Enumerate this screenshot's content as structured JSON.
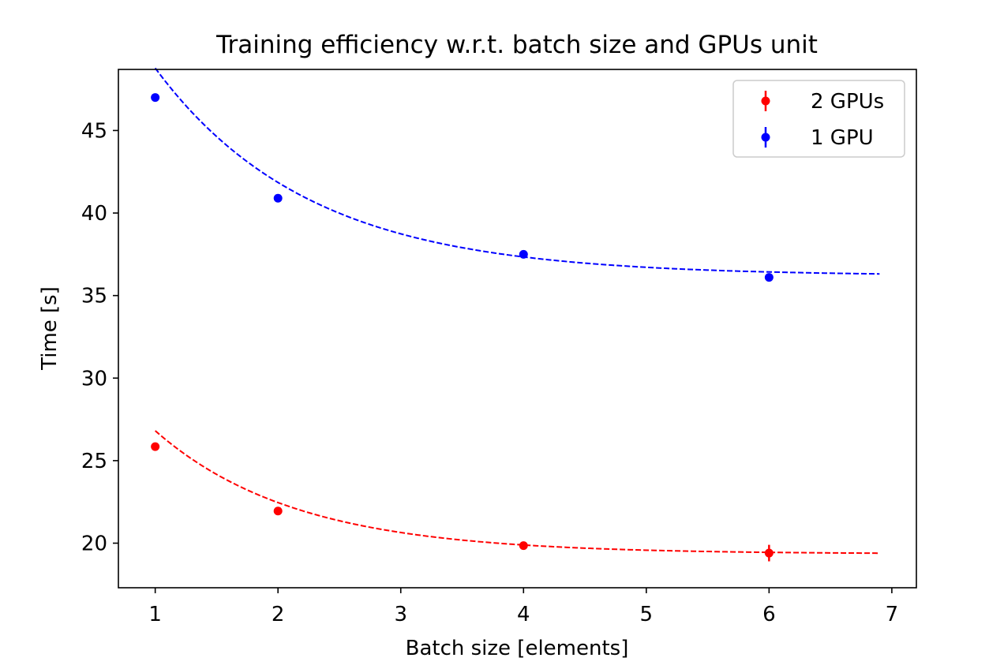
{
  "chart_data": {
    "type": "scatter",
    "title": "Training efficiency w.r.t. batch size and GPUs unit",
    "xlabel": "Batch size [elements]",
    "ylabel": "Time [s]",
    "xlim": [
      0.7,
      7.2
    ],
    "ylim": [
      17.3,
      48.7
    ],
    "xticks": [
      1,
      2,
      3,
      4,
      5,
      6,
      7
    ],
    "yticks": [
      20,
      25,
      30,
      35,
      40,
      45
    ],
    "grid": false,
    "legend_position": "top-right",
    "series": [
      {
        "name": "2 GPUs",
        "color": "#ff0000",
        "x": [
          1,
          2,
          4,
          6
        ],
        "y": [
          25.85,
          21.95,
          19.85,
          19.4
        ],
        "yerr": [
          0.15,
          0.15,
          0.15,
          0.5
        ],
        "fit": {
          "a": 17.9,
          "b": 0.875,
          "c": 19.35,
          "x_range": [
            1,
            6.9
          ]
        }
      },
      {
        "name": "1 GPU",
        "color": "#0000ff",
        "x": [
          1,
          2,
          4,
          6
        ],
        "y": [
          47.0,
          40.9,
          37.5,
          36.1
        ],
        "yerr": [
          0.1,
          0.1,
          0.1,
          0.1
        ],
        "fit": {
          "a": 28.0,
          "b": 0.8,
          "c": 36.2,
          "x_range": [
            1,
            6.9
          ]
        }
      }
    ]
  }
}
